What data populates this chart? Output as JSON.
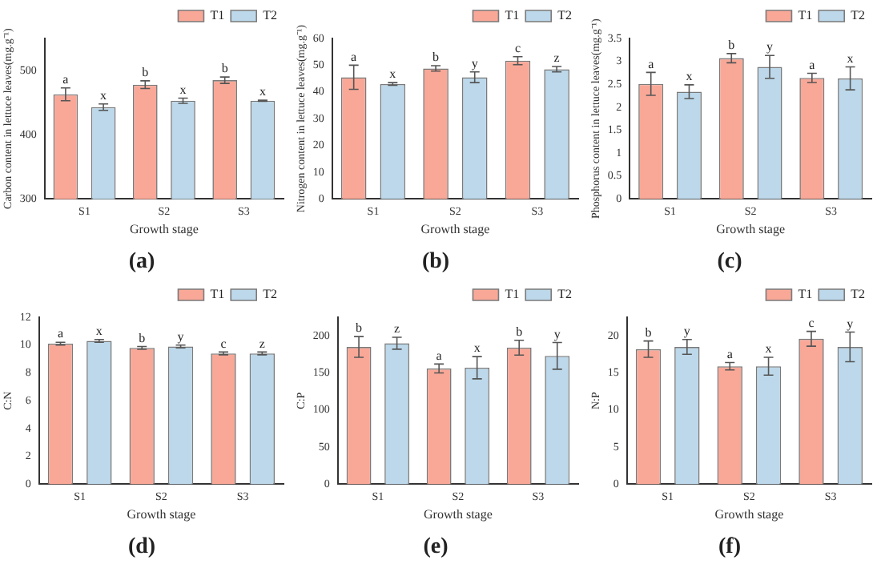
{
  "chart_data": [
    {
      "type": "bar",
      "title": "(a)",
      "xlabel": "Growth stage",
      "ylabel": "Carbon content in lettuce leaves(mg.g⁻¹)",
      "categories": [
        "S1",
        "S2",
        "S3"
      ],
      "ylim": [
        300,
        550
      ],
      "yticks": [
        300,
        400,
        500
      ],
      "legend": "top right",
      "series": [
        {
          "name": "T1",
          "color": "#f9a898",
          "values": [
            463,
            478,
            485
          ],
          "errors": [
            10,
            6,
            5
          ],
          "value_labels": [
            "a",
            "b",
            "b"
          ]
        },
        {
          "name": "T2",
          "color": "#bcd8ea",
          "values": [
            443,
            453,
            453
          ],
          "errors": [
            5,
            4,
            1
          ],
          "value_labels": [
            "x",
            "x",
            "x"
          ]
        }
      ]
    },
    {
      "type": "bar",
      "title": "(b)",
      "xlabel": "Growth stage",
      "ylabel": "Nitrogen content in lettuce leaves(mg.g⁻¹)",
      "categories": [
        "S1",
        "S2",
        "S3"
      ],
      "ylim": [
        0,
        60
      ],
      "yticks": [
        0,
        10,
        20,
        30,
        40,
        50,
        60
      ],
      "legend": "top right",
      "series": [
        {
          "name": "T1",
          "color": "#f9a898",
          "values": [
            45.5,
            48.8,
            51.7
          ],
          "errors": [
            4.5,
            1,
            1.5
          ],
          "value_labels": [
            "a",
            "b",
            "c"
          ]
        },
        {
          "name": "T2",
          "color": "#bcd8ea",
          "values": [
            43,
            45.5,
            48.5
          ],
          "errors": [
            0.5,
            2,
            1
          ],
          "value_labels": [
            "x",
            "y",
            "z"
          ]
        }
      ]
    },
    {
      "type": "bar",
      "title": "(c)",
      "xlabel": "Growth stage",
      "ylabel": "Phosphorus content in lettuce leaves(mg.g⁻¹)",
      "categories": [
        "S1",
        "S2",
        "S3"
      ],
      "ylim": [
        0,
        3.5
      ],
      "yticks": [
        0,
        0.5,
        1,
        1.5,
        2,
        2.5,
        3,
        3.5
      ],
      "legend": "top right",
      "series": [
        {
          "name": "T1",
          "color": "#f9a898",
          "values": [
            2.51,
            3.07,
            2.64
          ],
          "errors": [
            0.25,
            0.1,
            0.1
          ],
          "value_labels": [
            "a",
            "b",
            "a"
          ]
        },
        {
          "name": "T2",
          "color": "#bcd8ea",
          "values": [
            2.34,
            2.88,
            2.63
          ],
          "errors": [
            0.15,
            0.25,
            0.25
          ],
          "value_labels": [
            "x",
            "y",
            "x"
          ]
        }
      ]
    },
    {
      "type": "bar",
      "title": "(d)",
      "xlabel": "Growth stage",
      "ylabel": "C:N",
      "categories": [
        "S1",
        "S2",
        "S3"
      ],
      "ylim": [
        0,
        12
      ],
      "yticks": [
        0,
        2,
        4,
        6,
        8,
        10,
        12
      ],
      "legend": "top right",
      "series": [
        {
          "name": "T1",
          "color": "#f9a898",
          "values": [
            10.1,
            9.8,
            9.4
          ],
          "errors": [
            0.1,
            0.1,
            0.1
          ],
          "value_labels": [
            "a",
            "b",
            "c"
          ]
        },
        {
          "name": "T2",
          "color": "#bcd8ea",
          "values": [
            10.3,
            9.9,
            9.4
          ],
          "errors": [
            0.1,
            0.1,
            0.1
          ],
          "value_labels": [
            "x",
            "y",
            "z"
          ]
        }
      ]
    },
    {
      "type": "bar",
      "title": "(e)",
      "xlabel": "Growth stage",
      "ylabel": "C:P",
      "categories": [
        "S1",
        "S2",
        "S3"
      ],
      "ylim": [
        0,
        225
      ],
      "yticks": [
        0,
        50,
        100,
        150,
        200
      ],
      "legend": "top right",
      "series": [
        {
          "name": "T1",
          "color": "#f9a898",
          "values": [
            185,
            156,
            184
          ],
          "errors": [
            14,
            6,
            10
          ],
          "value_labels": [
            "b",
            "a",
            "b"
          ]
        },
        {
          "name": "T2",
          "color": "#bcd8ea",
          "values": [
            190,
            157,
            173
          ],
          "errors": [
            8,
            15,
            18
          ],
          "value_labels": [
            "z",
            "x",
            "y"
          ]
        }
      ]
    },
    {
      "type": "bar",
      "title": "(f)",
      "xlabel": "Growth stage",
      "ylabel": "N:P",
      "categories": [
        "S1",
        "S2",
        "S3"
      ],
      "ylim": [
        0,
        22.5
      ],
      "yticks": [
        0,
        5,
        10,
        15,
        20
      ],
      "legend": "top right",
      "series": [
        {
          "name": "T1",
          "color": "#f9a898",
          "values": [
            18.2,
            15.9,
            19.6
          ],
          "errors": [
            1.1,
            0.5,
            1
          ],
          "value_labels": [
            "b",
            "a",
            "c"
          ]
        },
        {
          "name": "T2",
          "color": "#bcd8ea",
          "values": [
            18.5,
            15.9,
            18.5
          ],
          "errors": [
            1,
            1.2,
            2
          ],
          "value_labels": [
            "y",
            "x",
            "y"
          ]
        }
      ]
    }
  ]
}
